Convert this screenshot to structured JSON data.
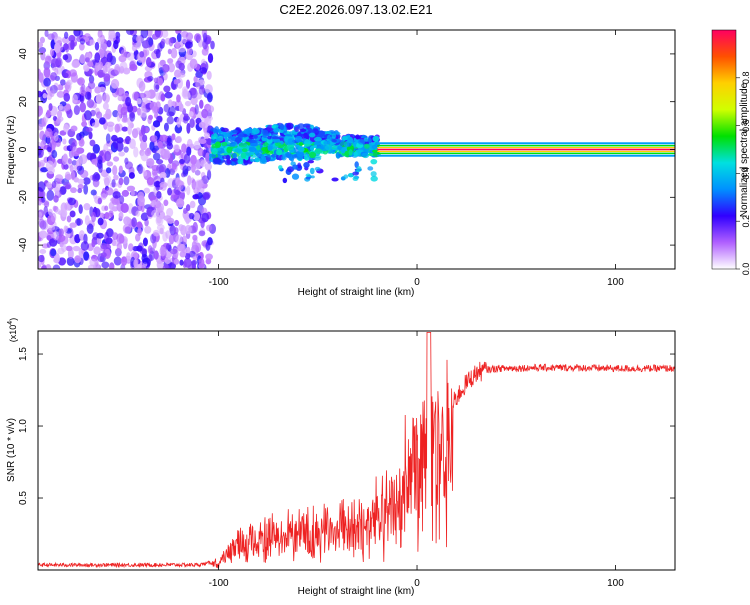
{
  "title": "C2E2.2026.097.13.02.E21",
  "chart_data": [
    {
      "type": "heatmap",
      "xlabel": "Height of straight line (km)",
      "ylabel": "Frequency (Hz)",
      "xlim": [
        -191,
        130
      ],
      "ylim": [
        -50,
        50
      ],
      "xticks": [
        -100,
        0,
        100
      ],
      "xtick_labels": [
        "-100",
        "0",
        "100"
      ],
      "yticks": [
        -40,
        -20,
        0,
        20,
        40
      ],
      "ytick_labels": [
        "-40",
        "-20",
        "0",
        "20",
        "40"
      ],
      "colorbar": {
        "label": "Normalized spectral amplitude",
        "range": [
          0,
          1
        ],
        "ticks": [
          0,
          0.2,
          0.4,
          0.6,
          0.8
        ],
        "tick_labels": [
          "0.0",
          "0.2",
          "0.4",
          "0.6",
          "0.8"
        ],
        "colors": [
          "#ffffff",
          "#b060ff",
          "#3000ff",
          "#0090ff",
          "#00e0e0",
          "#00e000",
          "#d0ff00",
          "#ffd000",
          "#ff5000",
          "#ff0060"
        ]
      },
      "regions": [
        {
          "name": "noise",
          "x_range": [
            -191,
            -103
          ],
          "y_range": [
            -50,
            50
          ],
          "amplitude": [
            0.05,
            0.25
          ]
        },
        {
          "name": "onset",
          "x_range": [
            -103,
            -20
          ],
          "y_range": [
            -10,
            12
          ],
          "amplitude": [
            0.2,
            0.45
          ]
        },
        {
          "name": "tone",
          "x_range": [
            -20,
            130
          ],
          "y_center": 0,
          "amplitude": 1.0
        }
      ]
    },
    {
      "type": "line",
      "xlabel": "Height of straight line (km)",
      "ylabel": "SNR (10 * v/v)",
      "y_multiplier": "(x10^4)",
      "y_multiplier_base": "(x10",
      "y_multiplier_exp": "4",
      "y_multiplier_close": ")",
      "xlim": [
        -191,
        130
      ],
      "ylim": [
        0,
        16600
      ],
      "xticks": [
        -100,
        0,
        100
      ],
      "xtick_labels": [
        "-100",
        "0",
        "100"
      ],
      "yticks": [
        5000,
        10000,
        15000
      ],
      "ytick_labels": [
        "0.5",
        "1.0",
        "1.5"
      ],
      "color": "#ee2222",
      "series": [
        {
          "name": "SNR",
          "x": [
            -191,
            -150,
            -110,
            -100,
            -95,
            -90,
            -85,
            -80,
            -70,
            -60,
            -50,
            -40,
            -30,
            -25,
            -20,
            -15,
            -10,
            -5,
            0,
            5,
            10,
            15,
            20,
            25,
            30,
            35,
            40,
            60,
            80,
            100,
            120,
            130
          ],
          "y": [
            350,
            350,
            360,
            600,
            1300,
            2000,
            2300,
            2500,
            2700,
            2900,
            3100,
            3400,
            3700,
            3900,
            5000,
            5600,
            6500,
            7600,
            8300,
            8800,
            9700,
            10700,
            12000,
            13000,
            13700,
            13900,
            14000,
            14050,
            14050,
            14000,
            14000,
            14000
          ]
        }
      ]
    }
  ]
}
